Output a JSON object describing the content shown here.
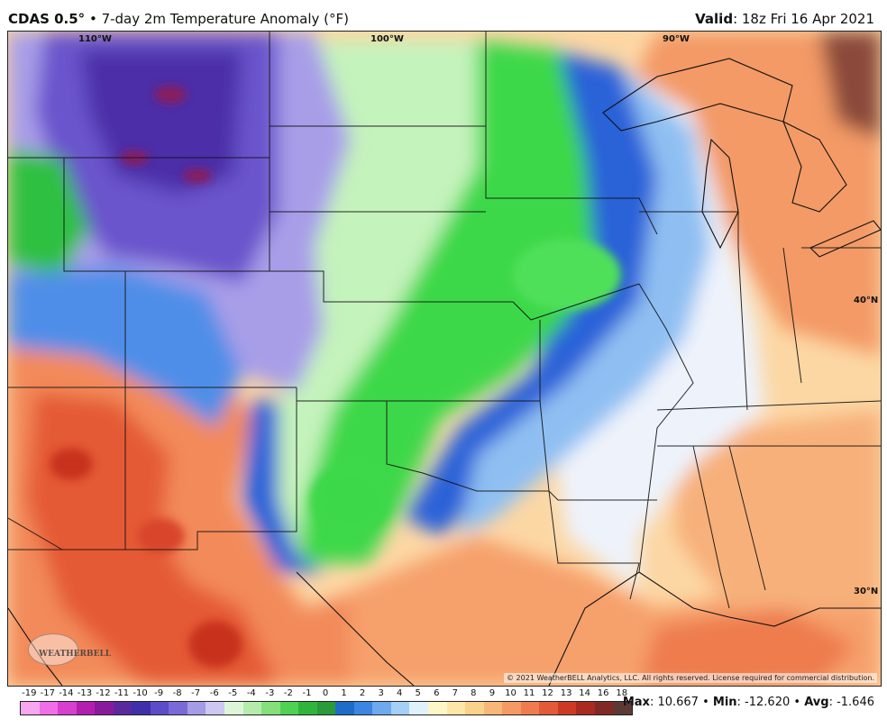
{
  "title": {
    "model": "CDAS 0.5°",
    "separator": " • ",
    "description": "7-day 2m Temperature Anomaly (°F)",
    "valid_label": "Valid",
    "valid_time": ": 18z Fri 16 Apr 2021"
  },
  "map": {
    "lon_labels": [
      "110°W",
      "100°W",
      "90°W"
    ],
    "lat_labels": [
      "40°N",
      "30°N"
    ],
    "copyright": "© 2021 WeatherBELL Analytics, LLC. All rights reserved. License required for commercial distribution.",
    "logo": "WEATHERBELL",
    "colors": {
      "deep_purple": "#4b2fa8",
      "purple": "#7a63d6",
      "lavender": "#b8b0f0",
      "mint": "#b7f0b2",
      "green": "#3dd84a",
      "dark_green": "#1aa52c",
      "blue": "#2c62d8",
      "light_blue": "#9cc8f4",
      "pale": "#eef3fb",
      "yellow": "#fde7a8",
      "orange": "#f8a46e",
      "red_orange": "#f07a4e",
      "red": "#dd4a2a",
      "brown": "#8a4a3a"
    }
  },
  "legend": {
    "labels": [
      "-19",
      "-17",
      "-14",
      "-13",
      "-12",
      "-11",
      "-10",
      "-9",
      "-8",
      "-7",
      "-6",
      "-5",
      "-4",
      "-3",
      "-2",
      "-1",
      "0",
      "1",
      "2",
      "3",
      "4",
      "5",
      "6",
      "7",
      "8",
      "9",
      "10",
      "11",
      "12",
      "13",
      "14",
      "16",
      "18"
    ],
    "colors": [
      "#f7a6f0",
      "#f06ee8",
      "#d63fcf",
      "#b21fb0",
      "#8a1a9c",
      "#5a2a9c",
      "#3f2fa8",
      "#5b4cc8",
      "#7a6ad8",
      "#a59ce6",
      "#cdc8f2",
      "#dff5d8",
      "#b5ecac",
      "#84e07a",
      "#4fd152",
      "#2fb53b",
      "#2a9a3a",
      "#1c6cc8",
      "#3c85e0",
      "#6ea8ee",
      "#a4d0f6",
      "#dff2fc",
      "#fff6c8",
      "#fde7a8",
      "#fbd289",
      "#f8b778",
      "#f49a62",
      "#ee7c4e",
      "#e25a38",
      "#cc3a26",
      "#a82a20",
      "#7f2a24",
      "#5c3a34"
    ]
  },
  "stats": {
    "max_label": "Max",
    "max": ": 10.667",
    "min_label": "Min",
    "min": ": -12.620",
    "avg_label": "Avg",
    "avg": ": -1.646",
    "sep": " • "
  }
}
